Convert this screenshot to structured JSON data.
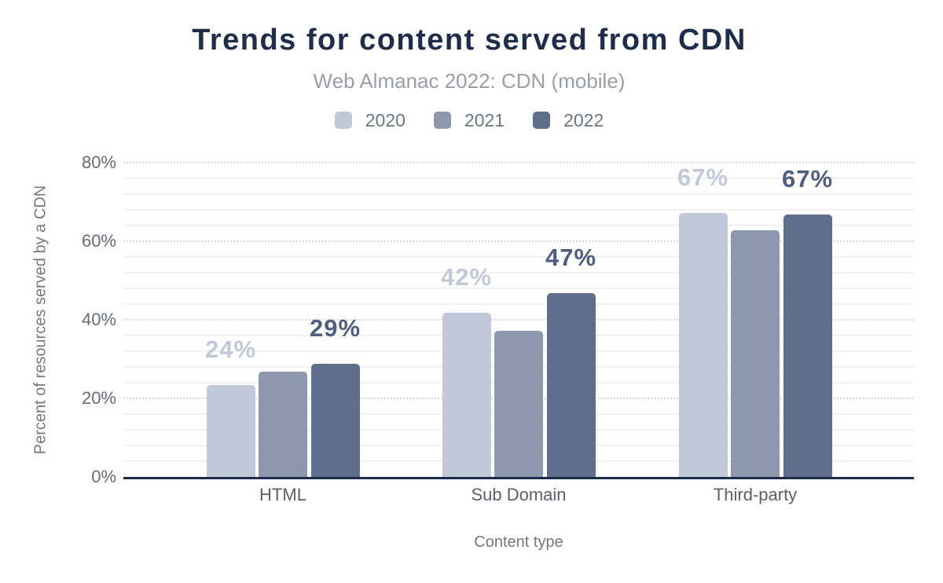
{
  "header": {
    "title": "Trends for content served from CDN",
    "subtitle": "Web Almanac 2022: CDN (mobile)"
  },
  "colors": {
    "title": "#1f2d4d",
    "subtitle": "#9b9ea6",
    "axis_line": "#1b2a4a",
    "grid_major": "#d9d9dc",
    "grid_minor": "#f2f2f4",
    "series_2020": "#c1c9d8",
    "series_2021": "#8d98ae",
    "series_2022": "#5f6e8c",
    "data_label_dark": "#4d5e82"
  },
  "chart_data": {
    "type": "bar",
    "title": "Trends for content served from CDN",
    "subtitle": "Web Almanac 2022: CDN (mobile)",
    "xlabel": "Content type",
    "ylabel": "Percent of resources served by a CDN",
    "categories": [
      "HTML",
      "Sub Domain",
      "Third-party"
    ],
    "ylim": [
      0,
      80
    ],
    "y_ticks": [
      {
        "value": 0,
        "label": "0%"
      },
      {
        "value": 20,
        "label": "20%"
      },
      {
        "value": 40,
        "label": "40%"
      },
      {
        "value": 60,
        "label": "60%"
      },
      {
        "value": 80,
        "label": "80%"
      }
    ],
    "grid": {
      "major_step": 20,
      "major_style": "dotted",
      "minor_step": 4,
      "minor_style": "solid"
    },
    "legend_position": "top",
    "series": [
      {
        "name": "2020",
        "color": "#c1c9d8",
        "values": [
          23.5,
          41.8,
          67.3
        ],
        "data_labels": [
          "24%",
          "42%",
          "67%"
        ],
        "label_color": "#c1c9d8"
      },
      {
        "name": "2021",
        "color": "#8d98ae",
        "values": [
          26.8,
          37.3,
          62.9
        ],
        "data_labels": [
          null,
          null,
          null
        ],
        "label_color": null
      },
      {
        "name": "2022",
        "color": "#5f6e8c",
        "values": [
          28.9,
          46.9,
          66.8
        ],
        "data_labels": [
          "29%",
          "47%",
          "67%"
        ],
        "label_color": "#4d5e82"
      }
    ]
  }
}
